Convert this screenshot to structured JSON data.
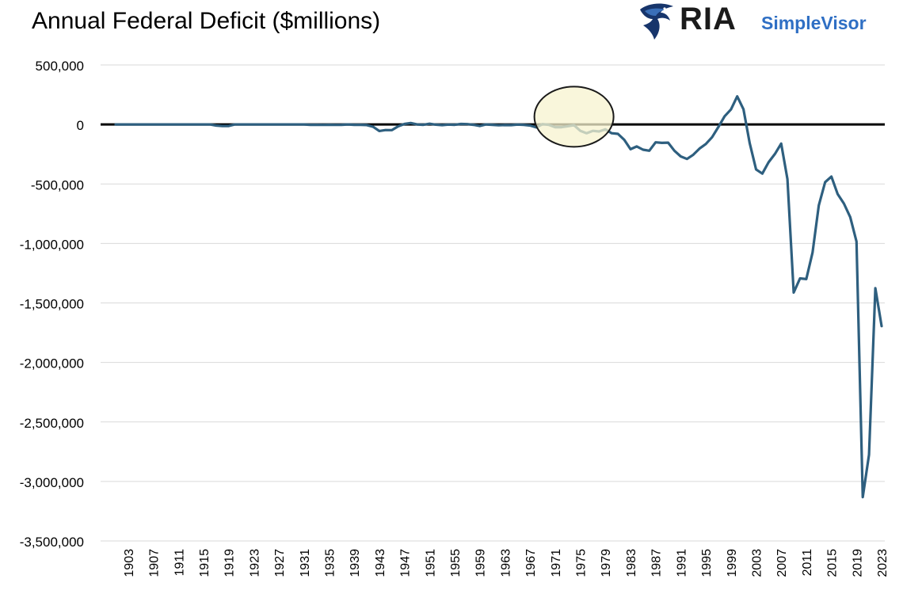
{
  "header": {
    "title": "Annual Federal Deficit ($millions)"
  },
  "logo": {
    "brand": "RIA",
    "product": "SimpleVisor",
    "icon": "eagle-icon",
    "brand_color": "#2f6fc4"
  },
  "chart_data": {
    "type": "line",
    "title": "Annual Federal Deficit ($millions)",
    "xlabel": "",
    "ylabel": "",
    "ylim": [
      -3500000,
      500000
    ],
    "yticks": [
      500000,
      0,
      -500000,
      -1000000,
      -1500000,
      -2000000,
      -2500000,
      -3000000,
      -3500000
    ],
    "ytick_labels": [
      "500,000",
      "0",
      "-500,000",
      "-1,000,000",
      "-1,500,000",
      "-2,000,000",
      "-2,500,000",
      "-3,000,000",
      "-3,500,000"
    ],
    "xlim": [
      1901,
      2023
    ],
    "xtick_labels": [
      "1903",
      "1907",
      "1911",
      "1915",
      "1919",
      "1923",
      "1927",
      "1931",
      "1935",
      "1939",
      "1943",
      "1947",
      "1951",
      "1955",
      "1959",
      "1963",
      "1967",
      "1971",
      "1975",
      "1979",
      "1983",
      "1987",
      "1991",
      "1995",
      "1999",
      "2003",
      "2007",
      "2011",
      "2015",
      "2019",
      "2023"
    ],
    "grid": true,
    "line_color": "#2e5f7f",
    "zero_line_color": "#000000",
    "highlight": {
      "center_year": 1974,
      "center_value": 65000,
      "fill": "#f7f3cf",
      "stroke": "#1a1a1a"
    },
    "series": [
      {
        "name": "",
        "points": [
          [
            1901,
            0
          ],
          [
            1902,
            0
          ],
          [
            1903,
            0
          ],
          [
            1904,
            0
          ],
          [
            1905,
            0
          ],
          [
            1906,
            0
          ],
          [
            1907,
            0
          ],
          [
            1908,
            0
          ],
          [
            1909,
            0
          ],
          [
            1910,
            0
          ],
          [
            1911,
            0
          ],
          [
            1912,
            0
          ],
          [
            1913,
            0
          ],
          [
            1914,
            0
          ],
          [
            1915,
            0
          ],
          [
            1916,
            0
          ],
          [
            1917,
            -9000
          ],
          [
            1918,
            -13000
          ],
          [
            1919,
            -13000
          ],
          [
            1920,
            0
          ],
          [
            1921,
            0
          ],
          [
            1922,
            0
          ],
          [
            1923,
            0
          ],
          [
            1924,
            0
          ],
          [
            1925,
            0
          ],
          [
            1926,
            0
          ],
          [
            1927,
            0
          ],
          [
            1928,
            0
          ],
          [
            1929,
            0
          ],
          [
            1930,
            0
          ],
          [
            1931,
            0
          ],
          [
            1932,
            -3000
          ],
          [
            1933,
            -3000
          ],
          [
            1934,
            -4000
          ],
          [
            1935,
            -3000
          ],
          [
            1936,
            -4000
          ],
          [
            1937,
            -3000
          ],
          [
            1938,
            0
          ],
          [
            1939,
            -3000
          ],
          [
            1940,
            -3000
          ],
          [
            1941,
            -5000
          ],
          [
            1942,
            -20000
          ],
          [
            1943,
            -55000
          ],
          [
            1944,
            -47000
          ],
          [
            1945,
            -48000
          ],
          [
            1946,
            -16000
          ],
          [
            1947,
            4000
          ],
          [
            1948,
            12000
          ],
          [
            1949,
            0
          ],
          [
            1950,
            -3000
          ],
          [
            1951,
            6000
          ],
          [
            1952,
            -2000
          ],
          [
            1953,
            -6000
          ],
          [
            1954,
            -1000
          ],
          [
            1955,
            -3000
          ],
          [
            1956,
            4000
          ],
          [
            1957,
            3000
          ],
          [
            1958,
            -3000
          ],
          [
            1959,
            -13000
          ],
          [
            1960,
            0
          ],
          [
            1961,
            -3000
          ],
          [
            1962,
            -7000
          ],
          [
            1963,
            -5000
          ],
          [
            1964,
            -6000
          ],
          [
            1965,
            -1000
          ],
          [
            1966,
            -4000
          ],
          [
            1967,
            -9000
          ],
          [
            1968,
            -25000
          ],
          [
            1969,
            3000
          ],
          [
            1970,
            -3000
          ],
          [
            1971,
            -23000
          ],
          [
            1972,
            -23000
          ],
          [
            1973,
            -15000
          ],
          [
            1974,
            -6000
          ],
          [
            1975,
            -53000
          ],
          [
            1976,
            -74000
          ],
          [
            1977,
            -54000
          ],
          [
            1978,
            -59000
          ],
          [
            1979,
            -41000
          ],
          [
            1980,
            -74000
          ],
          [
            1981,
            -79000
          ],
          [
            1982,
            -128000
          ],
          [
            1983,
            -208000
          ],
          [
            1984,
            -185000
          ],
          [
            1985,
            -212000
          ],
          [
            1986,
            -221000
          ],
          [
            1987,
            -150000
          ],
          [
            1988,
            -155000
          ],
          [
            1989,
            -153000
          ],
          [
            1990,
            -221000
          ],
          [
            1991,
            -269000
          ],
          [
            1992,
            -290000
          ],
          [
            1993,
            -255000
          ],
          [
            1994,
            -203000
          ],
          [
            1995,
            -164000
          ],
          [
            1996,
            -107000
          ],
          [
            1997,
            -22000
          ],
          [
            1998,
            69000
          ],
          [
            1999,
            126000
          ],
          [
            2000,
            236000
          ],
          [
            2001,
            128000
          ],
          [
            2002,
            -158000
          ],
          [
            2003,
            -378000
          ],
          [
            2004,
            -413000
          ],
          [
            2005,
            -318000
          ],
          [
            2006,
            -248000
          ],
          [
            2007,
            -161000
          ],
          [
            2008,
            -459000
          ],
          [
            2009,
            -1413000
          ],
          [
            2010,
            -1294000
          ],
          [
            2011,
            -1300000
          ],
          [
            2012,
            -1077000
          ],
          [
            2013,
            -680000
          ],
          [
            2014,
            -485000
          ],
          [
            2015,
            -438000
          ],
          [
            2016,
            -585000
          ],
          [
            2017,
            -665000
          ],
          [
            2018,
            -779000
          ],
          [
            2019,
            -984000
          ],
          [
            2020,
            -3132000
          ],
          [
            2021,
            -2775000
          ],
          [
            2022,
            -1376000
          ],
          [
            2023,
            -1695000
          ]
        ]
      }
    ]
  }
}
